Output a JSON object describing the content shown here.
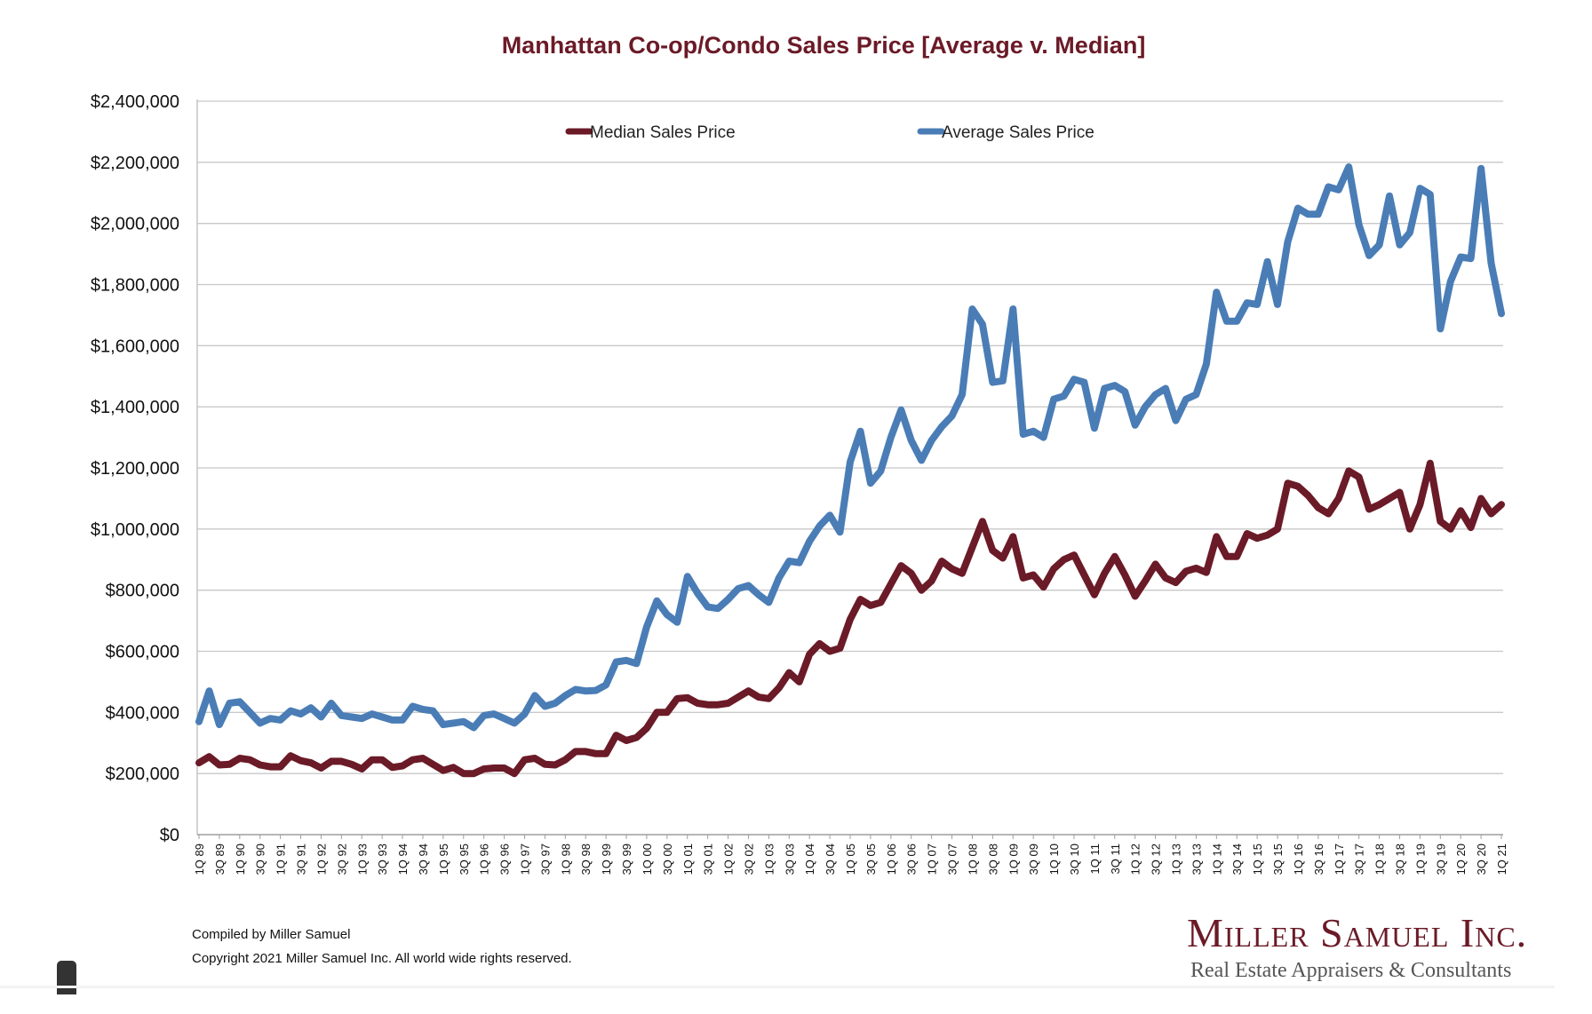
{
  "chart_data": {
    "type": "line",
    "title": "Manhattan Co-op/Condo Sales Price [Average v. Median]",
    "xlabel": "",
    "ylabel": "",
    "ylim": [
      0,
      2400000
    ],
    "y_ticks": [
      "$0",
      "$200,000",
      "$400,000",
      "$600,000",
      "$800,000",
      "$1,000,000",
      "$1,200,000",
      "$1,400,000",
      "$1,600,000",
      "$1,800,000",
      "$2,000,000",
      "$2,200,000",
      "$2,400,000"
    ],
    "x_ticks": [
      "1Q 89",
      "3Q 89",
      "1Q 90",
      "3Q 90",
      "1Q 91",
      "3Q 91",
      "1Q 92",
      "3Q 92",
      "1Q 93",
      "3Q 93",
      "1Q 94",
      "3Q 94",
      "1Q 95",
      "3Q 95",
      "1Q 96",
      "3Q 96",
      "1Q 97",
      "3Q 97",
      "1Q 98",
      "3Q 98",
      "1Q 99",
      "3Q 99",
      "1Q 00",
      "3Q 00",
      "1Q 01",
      "3Q 01",
      "1Q 02",
      "3Q 02",
      "1Q 03",
      "3Q 03",
      "1Q 04",
      "3Q 04",
      "1Q 05",
      "3Q 05",
      "1Q 06",
      "3Q 06",
      "1Q 07",
      "3Q 07",
      "1Q 08",
      "3Q 08",
      "1Q 09",
      "3Q 09",
      "1Q 10",
      "3Q 10",
      "1Q 11",
      "3Q 11",
      "1Q 12",
      "3Q 12",
      "1Q 13",
      "3Q 13",
      "1Q 14",
      "3Q 14",
      "1Q 15",
      "3Q 15",
      "1Q 16",
      "3Q 16",
      "1Q 17",
      "3Q 17",
      "1Q 18",
      "3Q 18",
      "1Q 19",
      "3Q 19",
      "1Q 20",
      "3Q 20",
      "1Q 21"
    ],
    "grid": true,
    "legend_position": "top",
    "series": [
      {
        "name": "Median Sales Price",
        "color": "#6b1a27",
        "values": [
          235000,
          255000,
          228000,
          230000,
          250000,
          245000,
          228000,
          222000,
          222000,
          258000,
          242000,
          235000,
          218000,
          240000,
          240000,
          230000,
          215000,
          245000,
          245000,
          220000,
          225000,
          245000,
          250000,
          230000,
          210000,
          220000,
          200000,
          200000,
          215000,
          218000,
          218000,
          200000,
          245000,
          250000,
          230000,
          228000,
          245000,
          272000,
          272000,
          265000,
          265000,
          325000,
          308000,
          318000,
          348000,
          400000,
          400000,
          445000,
          448000,
          430000,
          425000,
          425000,
          430000,
          450000,
          470000,
          450000,
          445000,
          480000,
          530000,
          500000,
          590000,
          625000,
          600000,
          610000,
          705000,
          770000,
          750000,
          760000,
          820000,
          880000,
          855000,
          800000,
          830000,
          895000,
          870000,
          855000,
          940000,
          1025000,
          930000,
          905000,
          975000,
          840000,
          850000,
          810000,
          870000,
          900000,
          915000,
          850000,
          785000,
          855000,
          910000,
          850000,
          780000,
          830000,
          885000,
          840000,
          825000,
          862000,
          872000,
          858000,
          975000,
          910000,
          910000,
          985000,
          970000,
          980000,
          1000000,
          1150000,
          1140000,
          1110000,
          1070000,
          1050000,
          1100000,
          1190000,
          1170000,
          1065000,
          1080000,
          1100000,
          1120000,
          1000000,
          1080000,
          1215000,
          1025000,
          1000000,
          1060000,
          1005000,
          1100000,
          1050000,
          1080000
        ]
      },
      {
        "name": "Average Sales Price",
        "color": "#4a7db6",
        "values": [
          370000,
          470000,
          360000,
          430000,
          435000,
          400000,
          365000,
          380000,
          375000,
          405000,
          395000,
          415000,
          385000,
          430000,
          390000,
          385000,
          380000,
          395000,
          385000,
          375000,
          375000,
          420000,
          410000,
          405000,
          360000,
          365000,
          370000,
          350000,
          390000,
          395000,
          380000,
          365000,
          395000,
          455000,
          420000,
          430000,
          455000,
          475000,
          470000,
          472000,
          490000,
          565000,
          570000,
          560000,
          680000,
          765000,
          720000,
          695000,
          845000,
          790000,
          745000,
          740000,
          770000,
          805000,
          815000,
          785000,
          760000,
          840000,
          895000,
          890000,
          960000,
          1010000,
          1045000,
          990000,
          1220000,
          1320000,
          1150000,
          1190000,
          1300000,
          1390000,
          1290000,
          1225000,
          1290000,
          1335000,
          1370000,
          1440000,
          1720000,
          1670000,
          1480000,
          1485000,
          1720000,
          1310000,
          1320000,
          1300000,
          1425000,
          1435000,
          1490000,
          1480000,
          1330000,
          1460000,
          1470000,
          1450000,
          1340000,
          1400000,
          1440000,
          1460000,
          1355000,
          1425000,
          1440000,
          1540000,
          1775000,
          1680000,
          1680000,
          1740000,
          1735000,
          1875000,
          1735000,
          1940000,
          2050000,
          2030000,
          2030000,
          2120000,
          2110000,
          2185000,
          1995000,
          1895000,
          1930000,
          2090000,
          1930000,
          1970000,
          2115000,
          2095000,
          1655000,
          1810000,
          1890000,
          1885000,
          2180000,
          1870000,
          1705000
        ]
      }
    ]
  },
  "footer": {
    "compiled": "Compiled by Miller Samuel",
    "copyright": "Copyright 2021 Miller Samuel Inc.  All world wide rights reserved."
  },
  "logo": {
    "name": "Miller Samuel Inc.",
    "tagline": "Real Estate Appraisers & Consultants"
  }
}
